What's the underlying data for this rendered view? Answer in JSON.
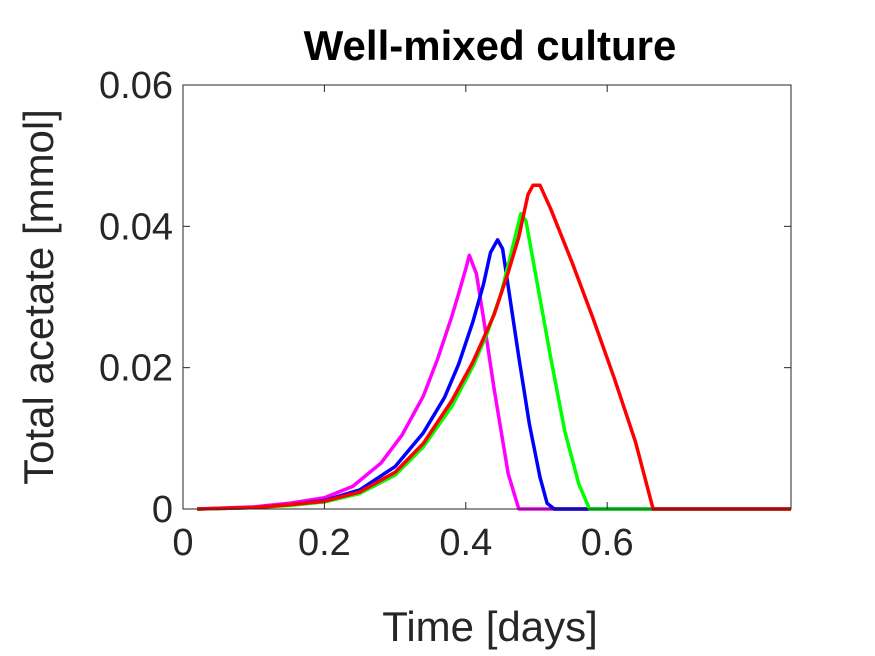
{
  "chart_data": {
    "type": "line",
    "title": "Well-mixed culture",
    "xlabel": "Time [days]",
    "ylabel": "Total acetate [mmol]",
    "xlim": [
      0,
      0.86
    ],
    "ylim": [
      0,
      0.06
    ],
    "xticks": [
      0,
      0.2,
      0.4,
      0.6
    ],
    "xtick_labels": [
      "0",
      "0.2",
      "0.4",
      "0.6"
    ],
    "yticks": [
      0,
      0.02,
      0.04,
      0.06
    ],
    "ytick_labels": [
      "0",
      "0.02",
      "0.04",
      "0.06"
    ],
    "grid": false,
    "box": true,
    "series": [
      {
        "color": "#ff00ff",
        "x": [
          0.02,
          0.1,
          0.15,
          0.2,
          0.24,
          0.28,
          0.31,
          0.34,
          0.36,
          0.38,
          0.39,
          0.4,
          0.405,
          0.415,
          0.425,
          0.44,
          0.46,
          0.475,
          0.86
        ],
        "y": [
          0.0,
          0.0003,
          0.0008,
          0.0016,
          0.0032,
          0.0065,
          0.0105,
          0.016,
          0.0212,
          0.0272,
          0.0305,
          0.034,
          0.0359,
          0.0333,
          0.027,
          0.017,
          0.005,
          0.0,
          0.0
        ]
      },
      {
        "color": "#0000ff",
        "x": [
          0.02,
          0.1,
          0.15,
          0.2,
          0.25,
          0.3,
          0.34,
          0.37,
          0.39,
          0.41,
          0.425,
          0.435,
          0.445,
          0.452,
          0.46,
          0.475,
          0.49,
          0.505,
          0.515,
          0.525,
          0.86
        ],
        "y": [
          0.0,
          0.0002,
          0.0006,
          0.0012,
          0.0027,
          0.006,
          0.0108,
          0.0158,
          0.0205,
          0.0265,
          0.0318,
          0.0363,
          0.0381,
          0.0368,
          0.0315,
          0.0215,
          0.012,
          0.0045,
          0.0008,
          0.0,
          0.0
        ]
      },
      {
        "color": "#00ff00",
        "x": [
          0.02,
          0.1,
          0.15,
          0.2,
          0.25,
          0.3,
          0.34,
          0.38,
          0.41,
          0.43,
          0.45,
          0.465,
          0.478,
          0.485,
          0.5,
          0.52,
          0.54,
          0.56,
          0.575,
          0.86
        ],
        "y": [
          0.0,
          0.0002,
          0.0005,
          0.001,
          0.0022,
          0.0048,
          0.0088,
          0.0145,
          0.0202,
          0.0248,
          0.0305,
          0.0365,
          0.0418,
          0.0408,
          0.0325,
          0.0215,
          0.011,
          0.0035,
          0.0,
          0.0
        ]
      },
      {
        "color": "#ff0000",
        "x": [
          0.02,
          0.1,
          0.15,
          0.2,
          0.25,
          0.3,
          0.34,
          0.38,
          0.41,
          0.44,
          0.46,
          0.475,
          0.488,
          0.495,
          0.505,
          0.52,
          0.55,
          0.58,
          0.61,
          0.64,
          0.665,
          0.86
        ],
        "y": [
          0.0,
          0.0002,
          0.0006,
          0.0011,
          0.0024,
          0.0052,
          0.0093,
          0.0153,
          0.0208,
          0.0275,
          0.0335,
          0.0385,
          0.0445,
          0.0458,
          0.0458,
          0.0425,
          0.035,
          0.027,
          0.0185,
          0.0095,
          0.0,
          0.0
        ]
      }
    ]
  }
}
